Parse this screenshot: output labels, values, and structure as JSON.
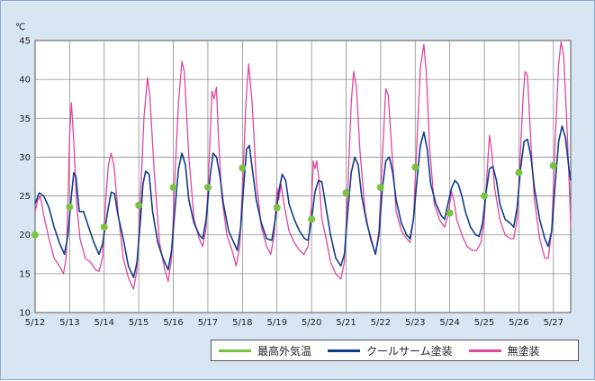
{
  "colors": {
    "max_outdoor": "#7cc242",
    "cool_paint": "#0f3e8c",
    "no_paint": "#e0479e"
  },
  "chart_data": {
    "type": "line",
    "unit_label": "℃",
    "ylim": [
      10,
      45
    ],
    "yticks": [
      10,
      15,
      20,
      25,
      30,
      35,
      40,
      45
    ],
    "xlim": [
      0,
      15.5
    ],
    "xticks": [
      "5/12",
      "5/13",
      "5/14",
      "5/15",
      "5/16",
      "5/17",
      "5/18",
      "5/19",
      "5/20",
      "5/21",
      "5/22",
      "5/23",
      "5/24",
      "5/25",
      "5/26",
      "5/27"
    ],
    "grid": true,
    "legend": {
      "position": "bottom-right",
      "entries": [
        "最高外気温",
        "クールサーム塗装",
        "無塗装"
      ]
    },
    "series": [
      {
        "name": "最高外気温",
        "style": "markers",
        "color": "#7cc242",
        "points": [
          [
            0.0,
            20.0
          ],
          [
            1.0,
            23.6
          ],
          [
            2.0,
            21.0
          ],
          [
            3.0,
            23.8
          ],
          [
            4.0,
            26.1
          ],
          [
            5.0,
            26.1
          ],
          [
            6.0,
            28.6
          ],
          [
            7.0,
            23.5
          ],
          [
            8.0,
            22.0
          ],
          [
            9.0,
            25.4
          ],
          [
            10.0,
            26.1
          ],
          [
            11.0,
            28.7
          ],
          [
            12.0,
            22.8
          ],
          [
            13.0,
            25.0
          ],
          [
            14.0,
            28.0
          ],
          [
            15.0,
            28.9
          ]
        ]
      },
      {
        "name": "クールサーム塗装",
        "style": "line",
        "color": "#0f3e8c",
        "points": [
          [
            0.0,
            24.0
          ],
          [
            0.12,
            25.4
          ],
          [
            0.25,
            25.0
          ],
          [
            0.4,
            23.5
          ],
          [
            0.55,
            21.0
          ],
          [
            0.7,
            19.0
          ],
          [
            0.85,
            17.5
          ],
          [
            0.95,
            20.0
          ],
          [
            1.05,
            25.0
          ],
          [
            1.12,
            28.0
          ],
          [
            1.18,
            27.5
          ],
          [
            1.28,
            23.0
          ],
          [
            1.4,
            23.0
          ],
          [
            1.55,
            21.0
          ],
          [
            1.7,
            19.0
          ],
          [
            1.85,
            17.5
          ],
          [
            1.95,
            18.8
          ],
          [
            2.1,
            23.0
          ],
          [
            2.2,
            25.5
          ],
          [
            2.3,
            25.3
          ],
          [
            2.4,
            22.5
          ],
          [
            2.55,
            19.5
          ],
          [
            2.7,
            16.0
          ],
          [
            2.85,
            14.5
          ],
          [
            2.95,
            16.5
          ],
          [
            3.05,
            22.0
          ],
          [
            3.12,
            26.5
          ],
          [
            3.2,
            28.2
          ],
          [
            3.3,
            27.8
          ],
          [
            3.4,
            23.0
          ],
          [
            3.55,
            19.0
          ],
          [
            3.7,
            17.0
          ],
          [
            3.85,
            15.5
          ],
          [
            3.95,
            18.0
          ],
          [
            4.05,
            23.5
          ],
          [
            4.15,
            28.5
          ],
          [
            4.25,
            30.5
          ],
          [
            4.35,
            29.0
          ],
          [
            4.45,
            24.5
          ],
          [
            4.6,
            21.5
          ],
          [
            4.75,
            20.0
          ],
          [
            4.85,
            19.5
          ],
          [
            4.95,
            22.0
          ],
          [
            5.05,
            27.0
          ],
          [
            5.15,
            30.5
          ],
          [
            5.25,
            30.0
          ],
          [
            5.35,
            27.5
          ],
          [
            5.45,
            24.0
          ],
          [
            5.6,
            20.5
          ],
          [
            5.75,
            19.0
          ],
          [
            5.85,
            18.0
          ],
          [
            5.95,
            21.0
          ],
          [
            6.05,
            27.0
          ],
          [
            6.12,
            31.0
          ],
          [
            6.2,
            31.5
          ],
          [
            6.3,
            28.0
          ],
          [
            6.4,
            24.5
          ],
          [
            6.55,
            21.5
          ],
          [
            6.7,
            19.5
          ],
          [
            6.85,
            19.3
          ],
          [
            6.95,
            22.0
          ],
          [
            7.05,
            25.5
          ],
          [
            7.15,
            27.8
          ],
          [
            7.25,
            27.0
          ],
          [
            7.35,
            24.0
          ],
          [
            7.5,
            22.0
          ],
          [
            7.65,
            20.5
          ],
          [
            7.8,
            19.5
          ],
          [
            7.9,
            19.3
          ],
          [
            8.0,
            22.0
          ],
          [
            8.1,
            25.5
          ],
          [
            8.2,
            27.0
          ],
          [
            8.3,
            26.8
          ],
          [
            8.4,
            24.0
          ],
          [
            8.55,
            20.0
          ],
          [
            8.7,
            17.0
          ],
          [
            8.85,
            16.0
          ],
          [
            8.95,
            17.5
          ],
          [
            9.05,
            23.0
          ],
          [
            9.15,
            28.0
          ],
          [
            9.25,
            30.0
          ],
          [
            9.35,
            29.0
          ],
          [
            9.45,
            25.0
          ],
          [
            9.6,
            21.5
          ],
          [
            9.75,
            19.0
          ],
          [
            9.85,
            17.5
          ],
          [
            9.95,
            20.0
          ],
          [
            10.05,
            26.0
          ],
          [
            10.15,
            29.5
          ],
          [
            10.25,
            30.0
          ],
          [
            10.35,
            28.0
          ],
          [
            10.45,
            24.5
          ],
          [
            10.6,
            21.5
          ],
          [
            10.75,
            20.0
          ],
          [
            10.85,
            19.5
          ],
          [
            10.95,
            22.0
          ],
          [
            11.05,
            27.0
          ],
          [
            11.15,
            31.5
          ],
          [
            11.25,
            33.2
          ],
          [
            11.35,
            31.0
          ],
          [
            11.45,
            26.5
          ],
          [
            11.6,
            24.0
          ],
          [
            11.75,
            22.5
          ],
          [
            11.85,
            22.0
          ],
          [
            11.95,
            24.0
          ],
          [
            12.05,
            26.0
          ],
          [
            12.15,
            27.0
          ],
          [
            12.25,
            26.5
          ],
          [
            12.35,
            25.0
          ],
          [
            12.45,
            23.0
          ],
          [
            12.6,
            21.0
          ],
          [
            12.75,
            20.0
          ],
          [
            12.85,
            19.8
          ],
          [
            12.95,
            21.5
          ],
          [
            13.05,
            25.5
          ],
          [
            13.15,
            28.5
          ],
          [
            13.25,
            28.8
          ],
          [
            13.35,
            27.0
          ],
          [
            13.45,
            24.0
          ],
          [
            13.6,
            22.0
          ],
          [
            13.75,
            21.5
          ],
          [
            13.85,
            21.0
          ],
          [
            13.95,
            23.5
          ],
          [
            14.05,
            28.5
          ],
          [
            14.15,
            32.0
          ],
          [
            14.25,
            32.3
          ],
          [
            14.35,
            30.0
          ],
          [
            14.45,
            26.0
          ],
          [
            14.6,
            22.0
          ],
          [
            14.75,
            19.5
          ],
          [
            14.85,
            18.5
          ],
          [
            14.95,
            20.5
          ],
          [
            15.05,
            26.5
          ],
          [
            15.15,
            32.0
          ],
          [
            15.25,
            34.0
          ],
          [
            15.35,
            32.5
          ],
          [
            15.45,
            28.5
          ],
          [
            15.5,
            27.0
          ]
        ]
      },
      {
        "name": "無塗装",
        "style": "line",
        "color": "#e0479e",
        "points": [
          [
            0.0,
            23.0
          ],
          [
            0.08,
            24.5
          ],
          [
            0.15,
            25.0
          ],
          [
            0.25,
            22.5
          ],
          [
            0.4,
            19.5
          ],
          [
            0.55,
            17.0
          ],
          [
            0.7,
            16.0
          ],
          [
            0.82,
            15.0
          ],
          [
            0.9,
            17.0
          ],
          [
            0.95,
            24.0
          ],
          [
            1.0,
            33.0
          ],
          [
            1.05,
            37.0
          ],
          [
            1.12,
            32.0
          ],
          [
            1.2,
            24.0
          ],
          [
            1.3,
            19.5
          ],
          [
            1.45,
            17.0
          ],
          [
            1.6,
            16.5
          ],
          [
            1.75,
            15.5
          ],
          [
            1.85,
            15.3
          ],
          [
            1.95,
            17.0
          ],
          [
            2.05,
            25.0
          ],
          [
            2.12,
            29.0
          ],
          [
            2.2,
            30.5
          ],
          [
            2.28,
            29.0
          ],
          [
            2.4,
            23.0
          ],
          [
            2.55,
            17.0
          ],
          [
            2.7,
            14.5
          ],
          [
            2.85,
            13.0
          ],
          [
            2.95,
            15.5
          ],
          [
            3.05,
            25.0
          ],
          [
            3.15,
            35.0
          ],
          [
            3.25,
            40.2
          ],
          [
            3.32,
            38.0
          ],
          [
            3.45,
            28.0
          ],
          [
            3.6,
            19.0
          ],
          [
            3.75,
            15.5
          ],
          [
            3.85,
            14.0
          ],
          [
            3.95,
            17.0
          ],
          [
            4.05,
            28.0
          ],
          [
            4.15,
            37.0
          ],
          [
            4.25,
            42.3
          ],
          [
            4.32,
            41.0
          ],
          [
            4.45,
            30.0
          ],
          [
            4.6,
            22.0
          ],
          [
            4.75,
            19.5
          ],
          [
            4.85,
            18.5
          ],
          [
            4.95,
            21.0
          ],
          [
            5.05,
            31.0
          ],
          [
            5.12,
            38.5
          ],
          [
            5.18,
            37.5
          ],
          [
            5.25,
            39.0
          ],
          [
            5.3,
            33.0
          ],
          [
            5.4,
            25.0
          ],
          [
            5.55,
            20.0
          ],
          [
            5.7,
            18.0
          ],
          [
            5.82,
            16.0
          ],
          [
            5.92,
            18.5
          ],
          [
            6.02,
            28.0
          ],
          [
            6.1,
            37.0
          ],
          [
            6.18,
            42.0
          ],
          [
            6.28,
            37.0
          ],
          [
            6.4,
            27.0
          ],
          [
            6.55,
            21.0
          ],
          [
            6.7,
            18.5
          ],
          [
            6.82,
            17.5
          ],
          [
            6.92,
            20.0
          ],
          [
            7.0,
            26.0
          ],
          [
            7.05,
            24.5
          ],
          [
            7.12,
            26.5
          ],
          [
            7.2,
            24.0
          ],
          [
            7.35,
            20.5
          ],
          [
            7.5,
            19.0
          ],
          [
            7.65,
            18.0
          ],
          [
            7.78,
            17.5
          ],
          [
            7.9,
            18.5
          ],
          [
            8.0,
            24.0
          ],
          [
            8.05,
            29.5
          ],
          [
            8.1,
            28.5
          ],
          [
            8.15,
            29.5
          ],
          [
            8.22,
            27.0
          ],
          [
            8.3,
            22.0
          ],
          [
            8.4,
            20.0
          ],
          [
            8.55,
            16.5
          ],
          [
            8.7,
            15.0
          ],
          [
            8.85,
            14.3
          ],
          [
            8.95,
            16.5
          ],
          [
            9.05,
            26.0
          ],
          [
            9.15,
            37.0
          ],
          [
            9.22,
            41.0
          ],
          [
            9.3,
            39.0
          ],
          [
            9.4,
            31.0
          ],
          [
            9.55,
            23.0
          ],
          [
            9.7,
            19.5
          ],
          [
            9.85,
            17.5
          ],
          [
            9.95,
            20.5
          ],
          [
            10.05,
            30.0
          ],
          [
            10.15,
            38.8
          ],
          [
            10.22,
            38.0
          ],
          [
            10.32,
            31.0
          ],
          [
            10.45,
            23.0
          ],
          [
            10.6,
            20.5
          ],
          [
            10.75,
            19.5
          ],
          [
            10.85,
            19.0
          ],
          [
            10.95,
            22.0
          ],
          [
            11.05,
            32.0
          ],
          [
            11.15,
            41.5
          ],
          [
            11.25,
            44.5
          ],
          [
            11.32,
            41.0
          ],
          [
            11.42,
            31.0
          ],
          [
            11.55,
            24.0
          ],
          [
            11.7,
            22.0
          ],
          [
            11.85,
            21.0
          ],
          [
            11.95,
            22.5
          ],
          [
            12.05,
            25.5
          ],
          [
            12.12,
            24.5
          ],
          [
            12.2,
            22.0
          ],
          [
            12.35,
            20.0
          ],
          [
            12.5,
            18.5
          ],
          [
            12.65,
            18.0
          ],
          [
            12.78,
            18.0
          ],
          [
            12.9,
            19.0
          ],
          [
            13.0,
            22.0
          ],
          [
            13.08,
            28.0
          ],
          [
            13.15,
            32.8
          ],
          [
            13.22,
            30.5
          ],
          [
            13.3,
            26.0
          ],
          [
            13.45,
            22.0
          ],
          [
            13.6,
            20.0
          ],
          [
            13.75,
            19.5
          ],
          [
            13.85,
            19.5
          ],
          [
            13.95,
            22.0
          ],
          [
            14.05,
            31.0
          ],
          [
            14.12,
            37.5
          ],
          [
            14.18,
            41.0
          ],
          [
            14.25,
            40.5
          ],
          [
            14.35,
            31.5
          ],
          [
            14.45,
            24.5
          ],
          [
            14.6,
            19.5
          ],
          [
            14.75,
            17.0
          ],
          [
            14.85,
            17.0
          ],
          [
            14.95,
            20.5
          ],
          [
            15.05,
            32.0
          ],
          [
            15.15,
            42.0
          ],
          [
            15.22,
            44.8
          ],
          [
            15.3,
            43.0
          ],
          [
            15.4,
            33.0
          ],
          [
            15.48,
            24.0
          ],
          [
            15.5,
            21.0
          ]
        ]
      }
    ]
  }
}
